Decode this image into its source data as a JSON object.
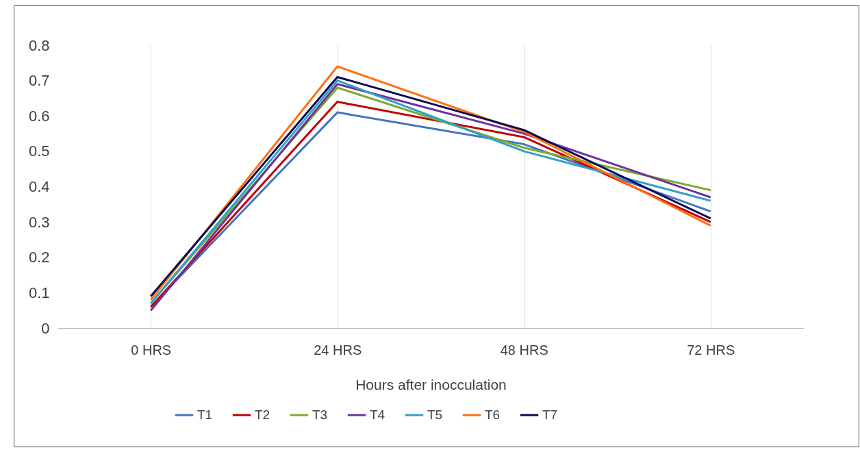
{
  "chart_data": {
    "type": "line",
    "xlabel": "Hours after inocculation",
    "categories": [
      "0 HRS",
      "24 HRS",
      "48 HRS",
      "72 HRS"
    ],
    "series": [
      {
        "name": "T1",
        "color": "#4472c4",
        "values": [
          0.06,
          0.61,
          0.52,
          0.33
        ]
      },
      {
        "name": "T2",
        "color": "#c00000",
        "values": [
          0.06,
          0.64,
          0.54,
          0.3
        ]
      },
      {
        "name": "T3",
        "color": "#7cab2c",
        "values": [
          0.07,
          0.68,
          0.51,
          0.39
        ]
      },
      {
        "name": "T4",
        "color": "#7030a0",
        "values": [
          0.05,
          0.69,
          0.55,
          0.37
        ]
      },
      {
        "name": "T5",
        "color": "#31a0c8",
        "values": [
          0.07,
          0.7,
          0.5,
          0.36
        ]
      },
      {
        "name": "T6",
        "color": "#ff7010",
        "values": [
          0.08,
          0.74,
          0.555,
          0.29
        ]
      },
      {
        "name": "T7",
        "color": "#0a0a50",
        "values": [
          0.09,
          0.71,
          0.56,
          0.31
        ]
      }
    ],
    "ylim": [
      0,
      0.8
    ],
    "yticks": [
      0,
      0.1,
      0.2,
      0.3,
      0.4,
      0.5,
      0.6,
      0.7,
      0.8
    ],
    "grid": "x",
    "legend": "bottom",
    "marker": "none",
    "line_style": "solid"
  }
}
